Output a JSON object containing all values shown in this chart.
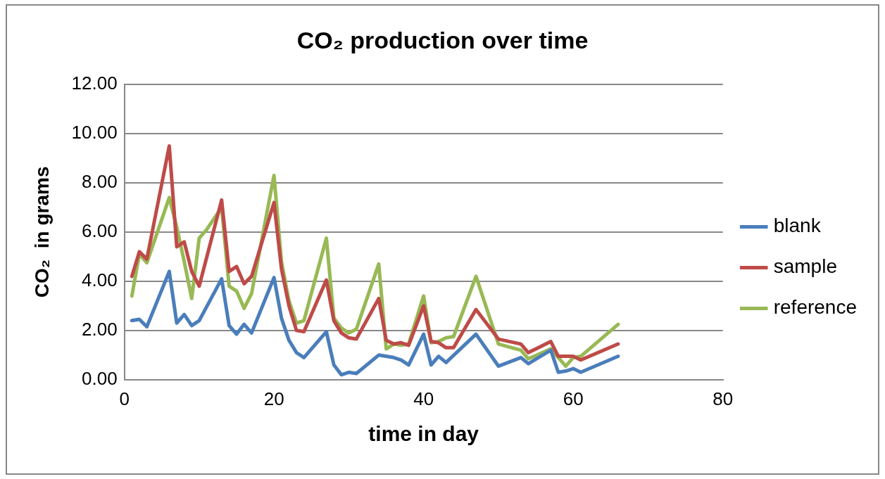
{
  "chart_data": {
    "type": "line",
    "title": "CO₂ production over time",
    "xlabel": "time in day",
    "ylabel": "CO₂  in grams",
    "xlim": [
      0,
      80
    ],
    "xticks": [
      0,
      20,
      40,
      60,
      80
    ],
    "ylim": [
      0,
      12
    ],
    "yticks": [
      {
        "value": 0,
        "label": "0.00"
      },
      {
        "value": 2,
        "label": "2.00"
      },
      {
        "value": 4,
        "label": "4.00"
      },
      {
        "value": 6,
        "label": "6.00"
      },
      {
        "value": 8,
        "label": "8.00"
      },
      {
        "value": 10,
        "label": "10.00"
      },
      {
        "value": 12,
        "label": "12.00"
      }
    ],
    "grid": "y",
    "legend": "right",
    "marker": "none",
    "line_style": "solid",
    "series": [
      {
        "name": "blank",
        "color": "#4a7ebb",
        "x": [
          1,
          2,
          3,
          6,
          7,
          8,
          9,
          10,
          13,
          14,
          15,
          16,
          17,
          20,
          21,
          22,
          23,
          24,
          27,
          28,
          29,
          30,
          31,
          34,
          36,
          37,
          38,
          40,
          41,
          42,
          43,
          47,
          50,
          53,
          54,
          57,
          58,
          59,
          60,
          61,
          66
        ],
        "values": [
          2.4,
          2.45,
          2.15,
          4.4,
          2.3,
          2.65,
          2.2,
          2.4,
          4.1,
          2.2,
          1.85,
          2.25,
          1.9,
          4.15,
          2.5,
          1.6,
          1.1,
          0.9,
          1.95,
          0.6,
          0.2,
          0.3,
          0.25,
          1.0,
          0.9,
          0.8,
          0.6,
          1.85,
          0.6,
          0.95,
          0.7,
          1.85,
          0.55,
          0.9,
          0.65,
          1.2,
          0.3,
          0.35,
          0.45,
          0.3,
          0.95
        ]
      },
      {
        "name": "sample",
        "color": "#be4b48",
        "x": [
          1,
          2,
          3,
          6,
          7,
          8,
          9,
          10,
          13,
          14,
          15,
          16,
          17,
          20,
          21,
          22,
          23,
          24,
          27,
          28,
          29,
          30,
          31,
          34,
          35,
          36,
          37,
          38,
          40,
          41,
          42,
          43,
          44,
          47,
          50,
          53,
          54,
          57,
          58,
          60,
          61,
          66
        ],
        "values": [
          4.2,
          5.2,
          4.9,
          9.5,
          5.4,
          5.6,
          4.4,
          3.8,
          7.3,
          4.4,
          4.6,
          3.9,
          4.2,
          7.2,
          4.5,
          3.0,
          2.0,
          1.95,
          4.05,
          2.4,
          1.9,
          1.7,
          1.65,
          3.3,
          1.6,
          1.45,
          1.5,
          1.4,
          3.0,
          1.55,
          1.5,
          1.3,
          1.3,
          2.85,
          1.65,
          1.45,
          1.1,
          1.55,
          0.95,
          0.95,
          0.8,
          1.45
        ]
      },
      {
        "name": "reference",
        "color": "#98b954",
        "x": [
          1,
          2,
          3,
          6,
          7,
          8,
          9,
          10,
          11,
          13,
          14,
          15,
          16,
          17,
          20,
          21,
          22,
          23,
          24,
          27,
          28,
          29,
          30,
          31,
          34,
          35,
          36,
          37,
          38,
          40,
          41,
          42,
          43,
          44,
          47,
          50,
          53,
          54,
          57,
          59,
          60,
          61,
          66
        ],
        "values": [
          3.4,
          5.1,
          4.75,
          7.4,
          6.2,
          4.8,
          3.3,
          5.75,
          6.1,
          7.0,
          3.8,
          3.6,
          2.9,
          3.5,
          8.3,
          4.8,
          3.2,
          2.3,
          2.4,
          5.75,
          2.5,
          2.1,
          1.9,
          2.05,
          4.7,
          1.25,
          1.45,
          1.4,
          1.45,
          3.4,
          1.5,
          1.55,
          1.7,
          1.75,
          4.2,
          1.45,
          1.2,
          0.85,
          1.25,
          0.55,
          0.9,
          0.95,
          2.25
        ]
      }
    ]
  }
}
